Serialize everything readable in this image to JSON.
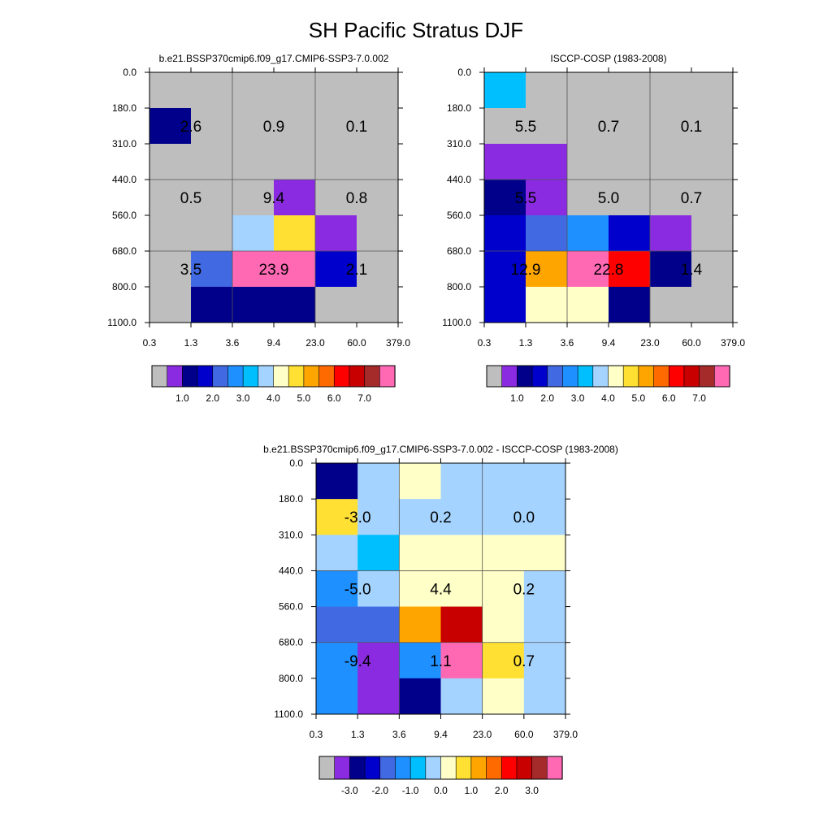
{
  "figure": {
    "title": "SH Pacific Stratus DJF"
  },
  "chart_data": [
    {
      "type": "heatmap",
      "title": "b.e21.BSSP370cmip6.f09_g17.CMIP6-SSP3-7.0.002",
      "x_ticks": [
        "0.3",
        "1.3",
        "3.6",
        "9.4",
        "23.0",
        "60.0",
        "379.0"
      ],
      "y_ticks": [
        "0.0",
        "180.0",
        "310.0",
        "440.0",
        "560.0",
        "680.0",
        "800.0",
        "1100.0"
      ],
      "cell_colors": [
        [
          "#bebebe",
          "#bebebe",
          "#bebebe",
          "#bebebe",
          "#bebebe",
          "#bebebe"
        ],
        [
          "#00008b",
          "#bebebe",
          "#bebebe",
          "#bebebe",
          "#bebebe",
          "#bebebe"
        ],
        [
          "#bebebe",
          "#bebebe",
          "#bebebe",
          "#bebebe",
          "#bebebe",
          "#bebebe"
        ],
        [
          "#bebebe",
          "#bebebe",
          "#bebebe",
          "#8a2be2",
          "#bebebe",
          "#bebebe"
        ],
        [
          "#bebebe",
          "#bebebe",
          "#a4d3ff",
          "#ffe033",
          "#8a2be2",
          "#bebebe"
        ],
        [
          "#bebebe",
          "#4169e1",
          "#ff69b4",
          "#ff69b4",
          "#0000cd",
          "#bebebe"
        ],
        [
          "#bebebe",
          "#00008b",
          "#00008b",
          "#00008b",
          "#bebebe",
          "#bebebe"
        ]
      ],
      "box_labels": [
        [
          "2.6",
          "0.9",
          "0.1"
        ],
        [
          "0.5",
          "9.4",
          "0.8"
        ],
        [
          "3.5",
          "23.9",
          "2.1"
        ]
      ],
      "colorbar": {
        "colors": [
          "#bebebe",
          "#8a2be2",
          "#00008b",
          "#0000cd",
          "#4169e1",
          "#1e90ff",
          "#00bfff",
          "#a4d3ff",
          "#ffffc8",
          "#ffe033",
          "#ffa500",
          "#ff6a00",
          "#ff0000",
          "#c80000",
          "#a52a2a",
          "#ff69b4"
        ],
        "labels": [
          "1.0",
          "2.0",
          "3.0",
          "4.0",
          "5.0",
          "6.0",
          "7.0"
        ]
      }
    },
    {
      "type": "heatmap",
      "title": "ISCCP-COSP (1983-2008)",
      "x_ticks": [
        "0.3",
        "1.3",
        "3.6",
        "9.4",
        "23.0",
        "60.0",
        "379.0"
      ],
      "y_ticks": [
        "0.0",
        "180.0",
        "310.0",
        "440.0",
        "560.0",
        "680.0",
        "800.0",
        "1100.0"
      ],
      "cell_colors": [
        [
          "#00bfff",
          "#bebebe",
          "#bebebe",
          "#bebebe",
          "#bebebe",
          "#bebebe"
        ],
        [
          "#bebebe",
          "#bebebe",
          "#bebebe",
          "#bebebe",
          "#bebebe",
          "#bebebe"
        ],
        [
          "#8a2be2",
          "#8a2be2",
          "#bebebe",
          "#bebebe",
          "#bebebe",
          "#bebebe"
        ],
        [
          "#00008b",
          "#8a2be2",
          "#bebebe",
          "#bebebe",
          "#bebebe",
          "#bebebe"
        ],
        [
          "#0000cd",
          "#4169e1",
          "#1e90ff",
          "#0000cd",
          "#8a2be2",
          "#bebebe"
        ],
        [
          "#0000cd",
          "#ffa500",
          "#ff69b4",
          "#ff0000",
          "#00008b",
          "#bebebe"
        ],
        [
          "#0000cd",
          "#ffffc8",
          "#ffffc8",
          "#00008b",
          "#bebebe",
          "#bebebe"
        ]
      ],
      "box_labels": [
        [
          "5.5",
          "0.7",
          "0.1"
        ],
        [
          "5.5",
          "5.0",
          "0.7"
        ],
        [
          "12.9",
          "22.8",
          "1.4"
        ]
      ],
      "colorbar": {
        "colors": [
          "#bebebe",
          "#8a2be2",
          "#00008b",
          "#0000cd",
          "#4169e1",
          "#1e90ff",
          "#00bfff",
          "#a4d3ff",
          "#ffffc8",
          "#ffe033",
          "#ffa500",
          "#ff6a00",
          "#ff0000",
          "#c80000",
          "#a52a2a",
          "#ff69b4"
        ],
        "labels": [
          "1.0",
          "2.0",
          "3.0",
          "4.0",
          "5.0",
          "6.0",
          "7.0"
        ]
      }
    },
    {
      "type": "heatmap",
      "title": "b.e21.BSSP370cmip6.f09_g17.CMIP6-SSP3-7.0.002 - ISCCP-COSP (1983-2008)",
      "x_ticks": [
        "0.3",
        "1.3",
        "3.6",
        "9.4",
        "23.0",
        "60.0",
        "379.0"
      ],
      "y_ticks": [
        "0.0",
        "180.0",
        "310.0",
        "440.0",
        "560.0",
        "680.0",
        "800.0",
        "1100.0"
      ],
      "cell_colors": [
        [
          "#00008b",
          "#a4d3ff",
          "#ffffc8",
          "#a4d3ff",
          "#a4d3ff",
          "#a4d3ff"
        ],
        [
          "#ffe033",
          "#a4d3ff",
          "#a4d3ff",
          "#a4d3ff",
          "#a4d3ff",
          "#a4d3ff"
        ],
        [
          "#a4d3ff",
          "#00bfff",
          "#ffffc8",
          "#ffffc8",
          "#ffffc8",
          "#ffffc8"
        ],
        [
          "#1e90ff",
          "#a4d3ff",
          "#ffffc8",
          "#ffffc8",
          "#ffffc8",
          "#a4d3ff"
        ],
        [
          "#4169e1",
          "#4169e1",
          "#ffa500",
          "#c80000",
          "#ffffc8",
          "#a4d3ff"
        ],
        [
          "#1e90ff",
          "#8a2be2",
          "#1e90ff",
          "#ff69b4",
          "#ffe033",
          "#a4d3ff"
        ],
        [
          "#1e90ff",
          "#8a2be2",
          "#00008b",
          "#a4d3ff",
          "#ffffc8",
          "#a4d3ff"
        ]
      ],
      "box_labels": [
        [
          "-3.0",
          "0.2",
          "0.0"
        ],
        [
          "-5.0",
          "4.4",
          "0.2"
        ],
        [
          "-9.4",
          "1.1",
          "0.7"
        ]
      ],
      "colorbar": {
        "colors": [
          "#bebebe",
          "#8a2be2",
          "#00008b",
          "#0000cd",
          "#4169e1",
          "#1e90ff",
          "#00bfff",
          "#a4d3ff",
          "#ffffc8",
          "#ffe033",
          "#ffa500",
          "#ff6a00",
          "#ff0000",
          "#c80000",
          "#a52a2a",
          "#ff69b4"
        ],
        "labels": [
          "-3.0",
          "-2.0",
          "-1.0",
          "0.0",
          "1.0",
          "2.0",
          "3.0"
        ]
      }
    }
  ]
}
